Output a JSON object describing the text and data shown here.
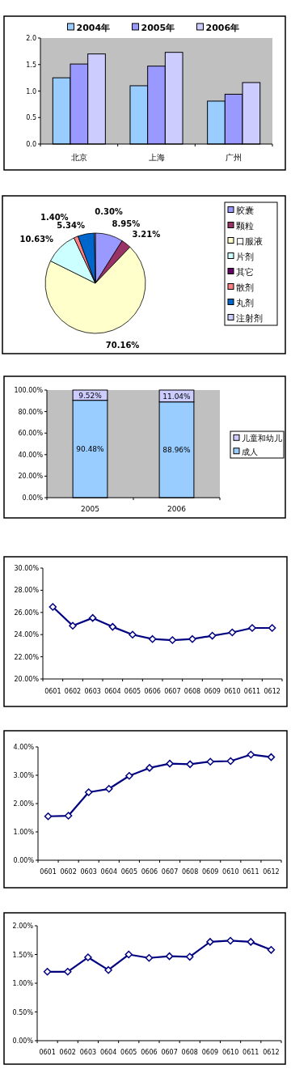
{
  "chart_data": [
    {
      "type": "bar",
      "categories": [
        "北京",
        "上海",
        "广州"
      ],
      "series": [
        {
          "name": "2004年",
          "color": "#99ccff",
          "values": [
            1.25,
            1.1,
            0.81
          ]
        },
        {
          "name": "2005年",
          "color": "#9999ff",
          "values": [
            1.51,
            1.47,
            0.94
          ]
        },
        {
          "name": "2006年",
          "color": "#ccccff",
          "values": [
            1.7,
            1.73,
            1.16
          ]
        }
      ],
      "ylim": [
        0,
        2
      ],
      "yticks": [
        {
          "value": 0,
          "label": "0.0"
        },
        {
          "value": 0.5,
          "label": "0.5"
        },
        {
          "value": 1,
          "label": "1.0"
        },
        {
          "value": 1.5,
          "label": "1.5"
        },
        {
          "value": 2,
          "label": "2.0"
        }
      ],
      "legend": "top"
    },
    {
      "type": "pie",
      "categories": [
        "胶囊",
        "颗粒",
        "口服液",
        "片剂",
        "其它",
        "散剂",
        "丸剂",
        "注射剂"
      ],
      "values": [
        8.95,
        3.21,
        70.16,
        10.63,
        0,
        1.4,
        5.34,
        0.3
      ],
      "colors": [
        "#9999ff",
        "#993366",
        "#ffffcc",
        "#ccffff",
        "#660066",
        "#ff8080",
        "#0066cc",
        "#ccccff"
      ],
      "value_labels": [
        "8.95%",
        "3.21%",
        "70.16%",
        "10.63%",
        null,
        "1.40%",
        "5.34%",
        "0.30%"
      ],
      "legend": "right"
    },
    {
      "type": "bar",
      "stacked": true,
      "categories": [
        "2005",
        "2006"
      ],
      "series": [
        {
          "name": "成人",
          "color": "#99ccff",
          "values": [
            90.48,
            88.96
          ],
          "value_labels": [
            "90.48%",
            "88.96%"
          ]
        },
        {
          "name": "儿童和幼儿",
          "color": "#ccccff",
          "values": [
            9.52,
            11.04
          ],
          "value_labels": [
            "9.52%",
            "11.04%"
          ]
        }
      ],
      "ylim": [
        0,
        100
      ],
      "yticks": [
        {
          "value": 0,
          "label": "0.00%"
        },
        {
          "value": 20,
          "label": "20.00%"
        },
        {
          "value": 40,
          "label": "40.00%"
        },
        {
          "value": 60,
          "label": "60.00%"
        },
        {
          "value": 80,
          "label": "80.00%"
        },
        {
          "value": 100,
          "label": "100.00%"
        }
      ],
      "legend": "right"
    },
    {
      "type": "line",
      "categories": [
        "0601",
        "0602",
        "0603",
        "0604",
        "0605",
        "0606",
        "0607",
        "0608",
        "0609",
        "0610",
        "0611",
        "0612"
      ],
      "series": [
        {
          "color": "#000080",
          "values": [
            26.5,
            24.8,
            25.5,
            24.7,
            24.0,
            23.6,
            23.5,
            23.6,
            23.9,
            24.2,
            24.6,
            24.6
          ]
        }
      ],
      "ylim": [
        20,
        30
      ],
      "yticks": [
        {
          "value": 20,
          "label": "20.00%"
        },
        {
          "value": 22,
          "label": "22.00%"
        },
        {
          "value": 24,
          "label": "24.00%"
        },
        {
          "value": 26,
          "label": "26.00%"
        },
        {
          "value": 28,
          "label": "28.00%"
        },
        {
          "value": 30,
          "label": "30.00%"
        }
      ],
      "marker": "diamond"
    },
    {
      "type": "line",
      "categories": [
        "0601",
        "0602",
        "0603",
        "0604",
        "0605",
        "0606",
        "0607",
        "0608",
        "0609",
        "0610",
        "0611",
        "0612"
      ],
      "series": [
        {
          "color": "#000080",
          "values": [
            1.55,
            1.57,
            2.4,
            2.52,
            2.98,
            3.26,
            3.41,
            3.39,
            3.48,
            3.5,
            3.73,
            3.64
          ]
        }
      ],
      "ylim": [
        0,
        4
      ],
      "yticks": [
        {
          "value": 0,
          "label": "0.00%"
        },
        {
          "value": 1,
          "label": "1.00%"
        },
        {
          "value": 2,
          "label": "2.00%"
        },
        {
          "value": 3,
          "label": "3.00%"
        },
        {
          "value": 4,
          "label": "4.00%"
        }
      ],
      "marker": "diamond"
    },
    {
      "type": "line",
      "categories": [
        "0601",
        "0602",
        "0603",
        "0604",
        "0605",
        "0606",
        "0607",
        "0608",
        "0609",
        "0610",
        "0611",
        "0612"
      ],
      "series": [
        {
          "color": "#000080",
          "values": [
            1.2,
            1.2,
            1.45,
            1.23,
            1.5,
            1.44,
            1.47,
            1.46,
            1.72,
            1.74,
            1.72,
            1.58
          ]
        }
      ],
      "ylim": [
        0,
        2
      ],
      "yticks": [
        {
          "value": 0,
          "label": "0.00%"
        },
        {
          "value": 0.5,
          "label": "0.50%"
        },
        {
          "value": 1,
          "label": "1.00%"
        },
        {
          "value": 1.5,
          "label": "1.50%"
        },
        {
          "value": 2,
          "label": "2.00%"
        }
      ],
      "marker": "diamond"
    }
  ]
}
